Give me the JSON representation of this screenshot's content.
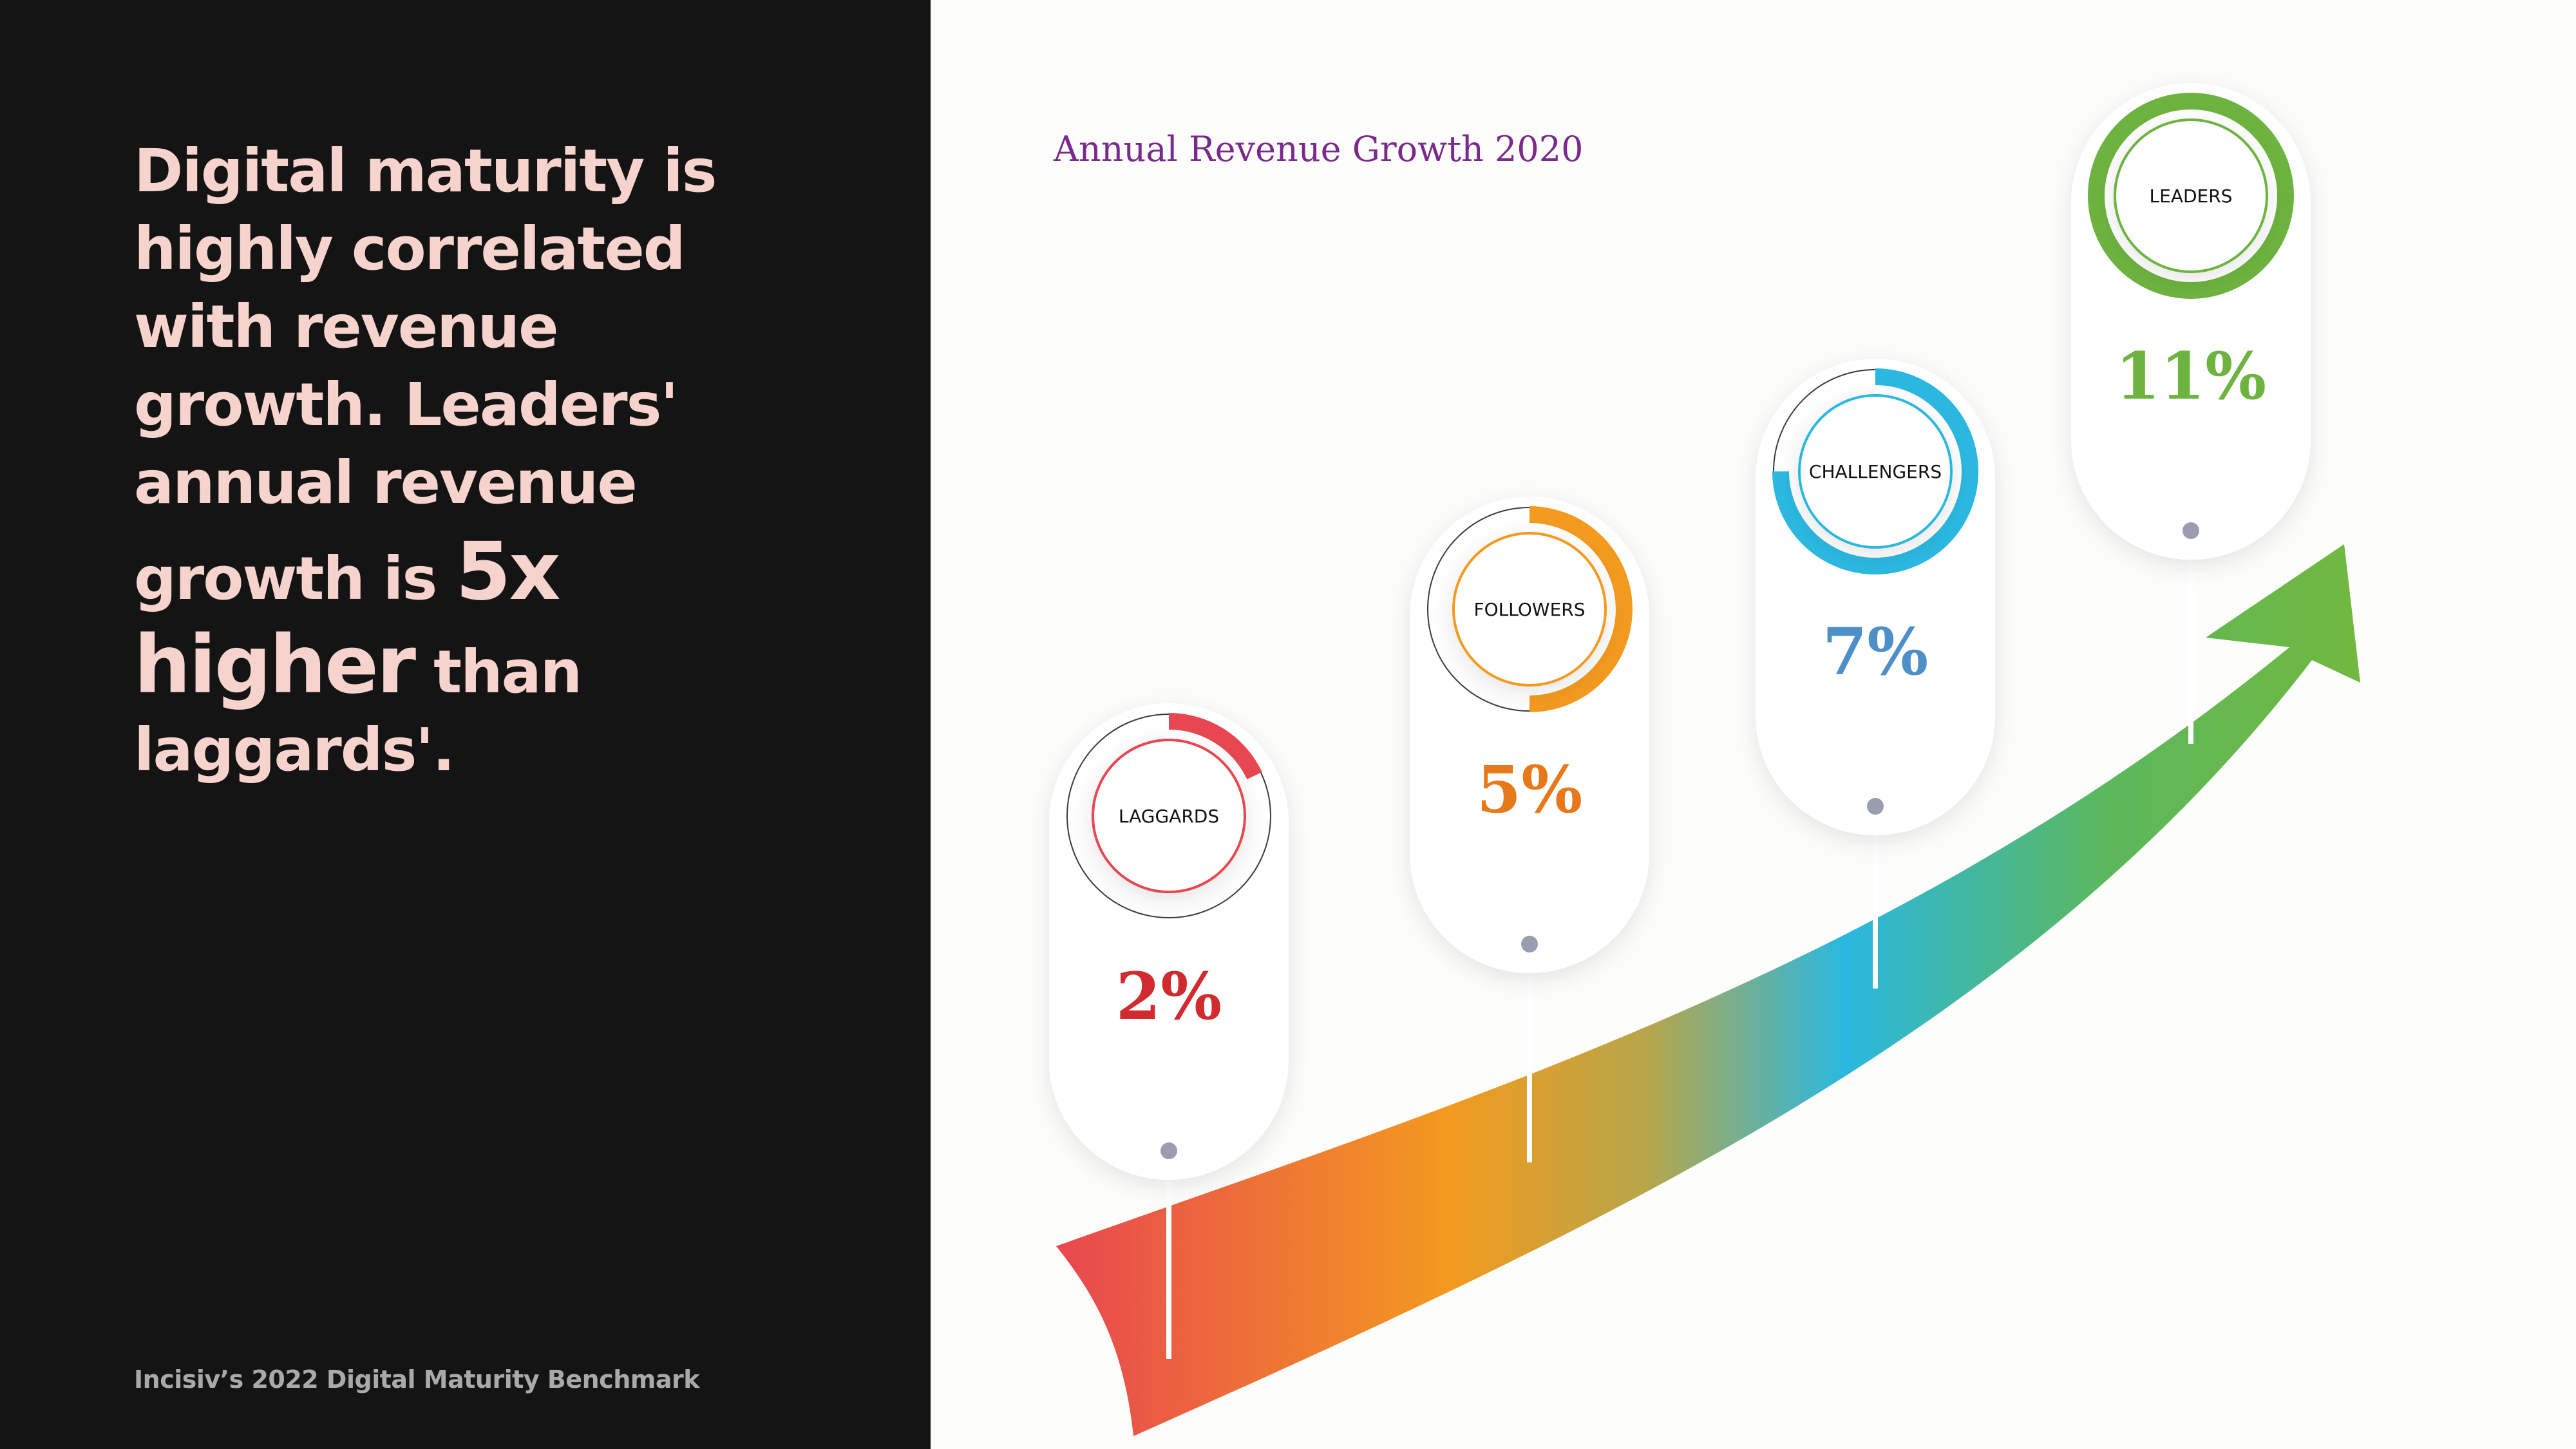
{
  "headline": {
    "line1": "Digital maturity is",
    "line2": "highly correlated",
    "line3": "with revenue",
    "line4": "growth. Leaders'",
    "line5": "annual revenue",
    "line6_a": "growth is ",
    "line6_b": "5x",
    "line7_a": "higher",
    "line7_b": " than",
    "line8": "laggards'."
  },
  "source": "Incisiv’s 2022 Digital Maturity Benchmark",
  "chart_data": {
    "type": "bar",
    "title": "Annual Revenue Growth 2020",
    "categories": [
      "LAGGARDS",
      "FOLLOWERS",
      "CHALLENGERS",
      "LEADERS"
    ],
    "values": [
      2,
      5,
      7,
      11
    ],
    "unit": "%",
    "value_labels": [
      "2%",
      "5%",
      "7%",
      "11%"
    ],
    "ring_fraction": [
      0.18,
      0.5,
      0.75,
      1.0
    ],
    "colors": {
      "laggards": "#e8474f",
      "followers": "#f39a1f",
      "challengers": "#2bb8e0",
      "leaders": "#6db33f"
    },
    "value_text_colors": [
      "#d12a2f",
      "#e8791a",
      "#4f8fc8",
      "#6db33f"
    ]
  }
}
